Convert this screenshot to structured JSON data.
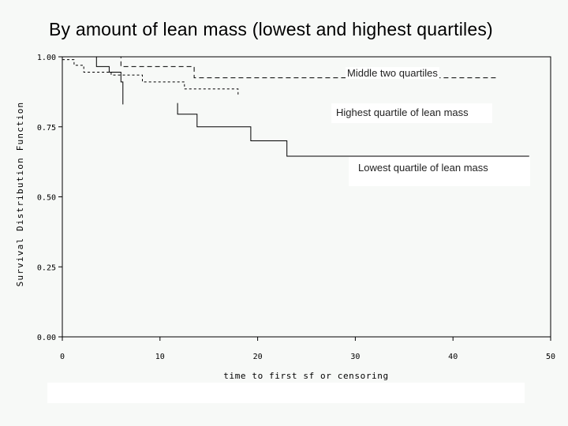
{
  "chart_data": {
    "type": "line",
    "title": "By amount of lean mass (lowest and highest quartiles)",
    "xlabel": "time to first sf or censoring",
    "ylabel": "Survival Distribution Function",
    "xlim": [
      0,
      50
    ],
    "ylim": [
      0,
      1
    ],
    "x_ticks": [
      "0",
      "10",
      "20",
      "30",
      "40",
      "50"
    ],
    "y_ticks": [
      "0.00",
      "0.25",
      "0.50",
      "0.75",
      "1.00"
    ],
    "series": [
      {
        "name": "Middle two quartiles",
        "style": "dashed",
        "points": [
          [
            0,
            1.0
          ],
          [
            6,
            1.0
          ],
          [
            6,
            0.965
          ],
          [
            13.5,
            0.965
          ],
          [
            13.5,
            0.925
          ],
          [
            44.5,
            0.925
          ]
        ]
      },
      {
        "name": "Highest quartile of lean mass",
        "style": "dotted",
        "points": [
          [
            0,
            0.99
          ],
          [
            1.2,
            0.99
          ],
          [
            1.2,
            0.97
          ],
          [
            2.2,
            0.97
          ],
          [
            2.2,
            0.945
          ],
          [
            5,
            0.945
          ],
          [
            5,
            0.935
          ],
          [
            8.2,
            0.935
          ],
          [
            8.2,
            0.91
          ],
          [
            12.5,
            0.91
          ],
          [
            12.5,
            0.885
          ],
          [
            18,
            0.885
          ],
          [
            18,
            0.865
          ]
        ]
      },
      {
        "name": "Lowest quartile of lean mass",
        "style": "solid",
        "points": [
          [
            0,
            1.0
          ],
          [
            3.5,
            1.0
          ],
          [
            3.5,
            0.965
          ],
          [
            4.8,
            0.965
          ],
          [
            4.8,
            0.945
          ],
          [
            6,
            0.945
          ],
          [
            6,
            0.91
          ],
          [
            6.2,
            0.91
          ],
          [
            6.2,
            0.83
          ]
        ]
      },
      {
        "name": "Lowest quartile of lean mass (continued)",
        "style": "solid",
        "points": [
          [
            11.8,
            0.835
          ],
          [
            11.8,
            0.795
          ],
          [
            13.8,
            0.795
          ],
          [
            13.8,
            0.75
          ],
          [
            19.3,
            0.75
          ],
          [
            19.3,
            0.7
          ],
          [
            23,
            0.7
          ],
          [
            23,
            0.645
          ],
          [
            47.8,
            0.645
          ]
        ]
      }
    ],
    "labels": {
      "middle": "Middle two quartiles",
      "highest": "Highest quartile of lean mass",
      "lowest": "Lowest quartile of lean mass"
    }
  }
}
